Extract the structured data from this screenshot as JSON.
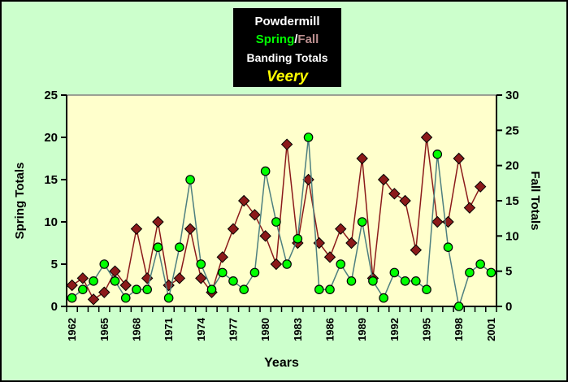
{
  "title_box": {
    "line1": "Powdermill",
    "spring_label": "Spring",
    "separator": "/",
    "fall_label": "Fall",
    "line3": "Banding Totals",
    "line4": "Veery"
  },
  "colors": {
    "background": "#ccffcc",
    "plot_background": "#ffffcc",
    "plot_top_border": "#808080",
    "axis": "#000000",
    "spring_marker": "#00ff00",
    "spring_line": "#4d7f7f",
    "fall_marker": "#8b1a1a",
    "fall_line": "#8b1a1a",
    "title_bg": "#000000",
    "title_text": "#ffffff",
    "title_spring": "#00ff00",
    "title_fall": "#bc8f8f",
    "title_veery": "#ffff00"
  },
  "chart_data": {
    "type": "line",
    "x": [
      1962,
      1963,
      1964,
      1965,
      1966,
      1967,
      1968,
      1969,
      1970,
      1971,
      1972,
      1973,
      1974,
      1975,
      1976,
      1977,
      1978,
      1979,
      1980,
      1981,
      1982,
      1983,
      1984,
      1985,
      1986,
      1987,
      1988,
      1989,
      1990,
      1991,
      1992,
      1993,
      1994,
      1995,
      1996,
      1997,
      1998,
      1999,
      2000,
      2001
    ],
    "series": [
      {
        "name": "Spring",
        "axis": "left",
        "marker": "circle",
        "marker_color": "#00ff00",
        "line_color": "#4d7f7f",
        "values": [
          1,
          2,
          3,
          5,
          3,
          1,
          2,
          2,
          7,
          1,
          7,
          15,
          5,
          2,
          4,
          3,
          2,
          4,
          16,
          10,
          5,
          8,
          20,
          2,
          2,
          5,
          3,
          10,
          3,
          1,
          4,
          3,
          3,
          2,
          18,
          7,
          0,
          4,
          5,
          4
        ]
      },
      {
        "name": "Fall",
        "axis": "right",
        "marker": "diamond",
        "marker_color": "#8b1a1a",
        "line_color": "#8b1a1a",
        "values": [
          3,
          4,
          1,
          2,
          5,
          3,
          11,
          4,
          12,
          3,
          4,
          11,
          4,
          2,
          7,
          11,
          15,
          13,
          10,
          6,
          23,
          9,
          18,
          9,
          7,
          11,
          9,
          21,
          4,
          18,
          16,
          15,
          8,
          24,
          12,
          12,
          21,
          14,
          17,
          null
        ]
      }
    ],
    "left_axis": {
      "title": "Spring Totals",
      "min": 0,
      "max": 25,
      "ticks": [
        0,
        5,
        10,
        15,
        20,
        25
      ]
    },
    "right_axis": {
      "title": "Fall Totals",
      "min": 0,
      "max": 30,
      "ticks": [
        0,
        5,
        10,
        15,
        20,
        25,
        30
      ]
    },
    "x_axis": {
      "title": "Years",
      "labels": [
        1962,
        1965,
        1968,
        1971,
        1974,
        1977,
        1980,
        1983,
        1986,
        1989,
        1992,
        1995,
        1998,
        2001
      ]
    },
    "grid": false,
    "legend": "none"
  }
}
